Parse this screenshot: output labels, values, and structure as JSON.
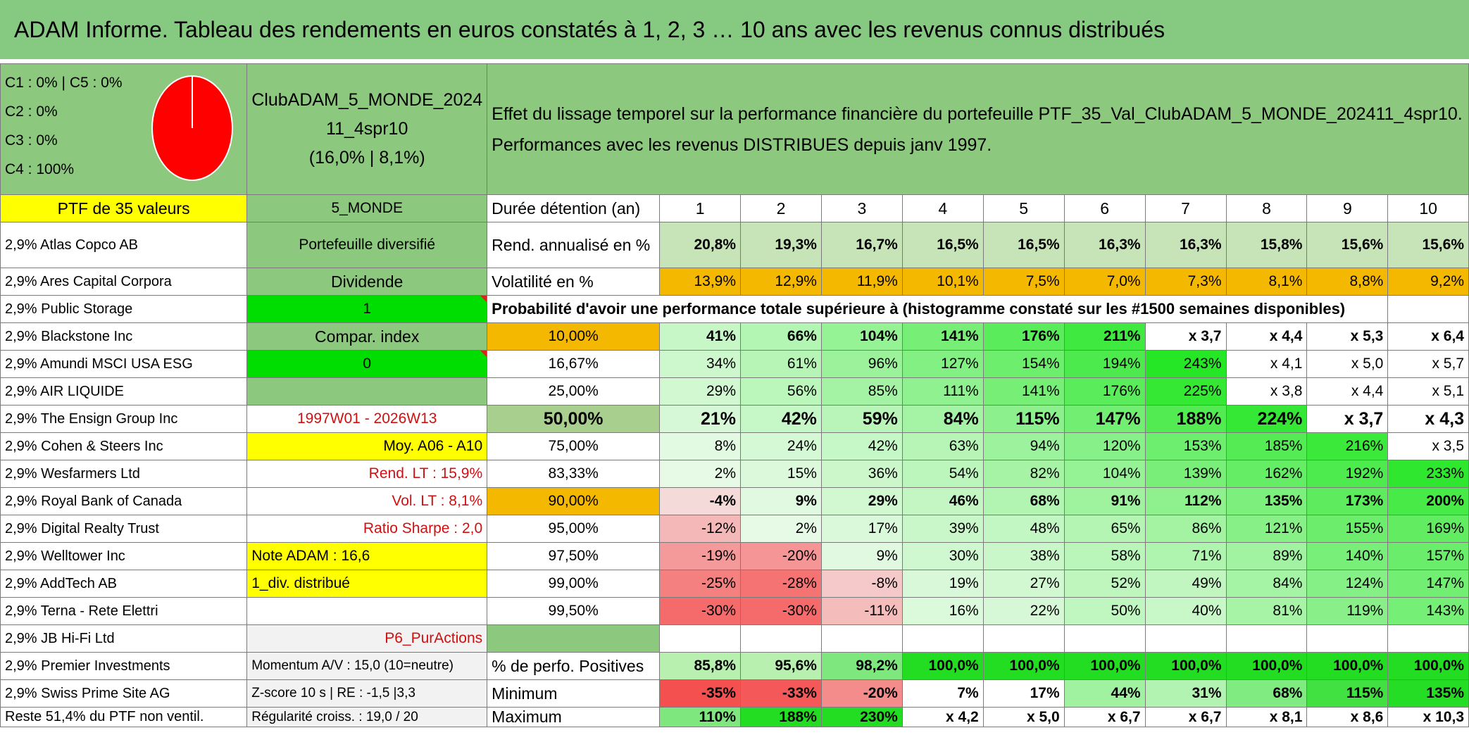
{
  "title": "ADAM Informe. Tableau des rendements en euros constatés à 1, 2, 3 … 10 ans avec les revenus connus distribués",
  "colors": {
    "banner": "#86c980",
    "label_green": "#8cc97e",
    "medium_green": "#7ec06f",
    "bright_green": "#00dd00",
    "yellow": "#ffff00",
    "orange": "#f5b800",
    "red": "#e02020",
    "pie": "#ff0000"
  },
  "legend": [
    "C1 : 0% | C5 : 0%",
    "C2 : 0%",
    "C3 : 0%",
    "C4 : 100%"
  ],
  "pie": {
    "C1": 0,
    "C2": 0,
    "C3": 0,
    "C4": 100,
    "C5": 0
  },
  "portfolio_name": [
    "ClubADAM_5_MONDE_2024",
    "11_4spr10",
    "(16,0% | 8,1%)"
  ],
  "effet_text": [
    "Effet du lissage temporel sur la performance financière du portefeuille PTF_35_Val_ClubADAM_5_MONDE_202411_4spr10.",
    "Performances avec les revenus DISTRIBUES depuis janv 1997."
  ],
  "ptf_label": "PTF de 35 valeurs",
  "zone_label": "5_MONDE",
  "duree_label": "Durée détention (an)",
  "years": [
    "1",
    "2",
    "3",
    "4",
    "5",
    "6",
    "7",
    "8",
    "9",
    "10"
  ],
  "holdings": [
    "2,9% Atlas Copco AB",
    "2,9% Ares Capital Corpora",
    "2,9% Public Storage",
    "2,9% Blackstone Inc",
    "2,9% Amundi MSCI USA ESG",
    "2,9% AIR LIQUIDE",
    "2,9% The Ensign Group Inc",
    "2,9% Cohen & Steers Inc",
    "2,9% Wesfarmers Ltd",
    "2,9% Royal Bank of Canada",
    "2,9% Digital Realty Trust",
    "2,9% Welltower Inc",
    "2,9% AddTech AB",
    "2,9% Terna - Rete Elettri",
    "2,9% JB Hi-Fi Ltd",
    "2,9% Premier Investments",
    "2,9% Swiss Prime Site AG",
    "Reste 51,4% du PTF non ventil."
  ],
  "info": {
    "diversifie": "Portefeuille diversifié",
    "dividende": "Dividende",
    "one": "1",
    "compar": "Compar. index",
    "zero": "0",
    "periode": "1997W01 - 2026W13",
    "moy": "Moy. A06 - A10",
    "rend_lt": "Rend. LT : 15,9%",
    "vol_lt": "Vol. LT : 8,1%",
    "sharpe": "Ratio Sharpe : 2,0",
    "note": "Note ADAM : 16,6",
    "div": "1_div. distribué",
    "p6": "P6_PurActions",
    "momentum": "Momentum A/V : 15,0 (10=neutre)",
    "zscore": "Z-score 10 s | RE : -1,5 |3,3",
    "regularite": "Régularité croiss. : 19,0 / 20"
  },
  "rend": {
    "label": "Rend. annualisé en %",
    "values": [
      "20,8%",
      "19,3%",
      "16,7%",
      "16,5%",
      "16,5%",
      "16,3%",
      "16,3%",
      "15,8%",
      "15,6%",
      "15,6%"
    ]
  },
  "vol": {
    "label": "Volatilité en %",
    "values": [
      "13,9%",
      "12,9%",
      "11,9%",
      "10,1%",
      "7,5%",
      "7,0%",
      "7,3%",
      "8,1%",
      "8,8%",
      "9,2%"
    ]
  },
  "prob_title": "Probabilité d'avoir une performance totale supérieure à (histogramme constaté sur les #1500 semaines disponibles)",
  "prob_rows": [
    {
      "p": "10,00%",
      "v": [
        "41%",
        "66%",
        "104%",
        "141%",
        "176%",
        "211%",
        "x 3,7",
        "x 4,4",
        "x 5,3",
        "x 6,4"
      ]
    },
    {
      "p": "16,67%",
      "v": [
        "34%",
        "61%",
        "96%",
        "127%",
        "154%",
        "194%",
        "243%",
        "x 4,1",
        "x 5,0",
        "x 5,7"
      ]
    },
    {
      "p": "25,00%",
      "v": [
        "29%",
        "56%",
        "85%",
        "111%",
        "141%",
        "176%",
        "225%",
        "x 3,8",
        "x 4,4",
        "x 5,1"
      ]
    },
    {
      "p": "50,00%",
      "v": [
        "21%",
        "42%",
        "59%",
        "84%",
        "115%",
        "147%",
        "188%",
        "224%",
        "x 3,7",
        "x 4,3"
      ]
    },
    {
      "p": "75,00%",
      "v": [
        "8%",
        "24%",
        "42%",
        "63%",
        "94%",
        "120%",
        "153%",
        "185%",
        "216%",
        "x 3,5"
      ]
    },
    {
      "p": "83,33%",
      "v": [
        "2%",
        "15%",
        "36%",
        "54%",
        "82%",
        "104%",
        "139%",
        "162%",
        "192%",
        "233%"
      ]
    },
    {
      "p": "90,00%",
      "v": [
        "-4%",
        "9%",
        "29%",
        "46%",
        "68%",
        "91%",
        "112%",
        "135%",
        "173%",
        "200%"
      ]
    },
    {
      "p": "95,00%",
      "v": [
        "-12%",
        "2%",
        "17%",
        "39%",
        "48%",
        "65%",
        "86%",
        "121%",
        "155%",
        "169%"
      ]
    },
    {
      "p": "97,50%",
      "v": [
        "-19%",
        "-20%",
        "9%",
        "30%",
        "38%",
        "58%",
        "71%",
        "89%",
        "140%",
        "157%"
      ]
    },
    {
      "p": "99,00%",
      "v": [
        "-25%",
        "-28%",
        "-8%",
        "19%",
        "27%",
        "52%",
        "49%",
        "84%",
        "124%",
        "147%"
      ]
    },
    {
      "p": "99,50%",
      "v": [
        "-30%",
        "-30%",
        "-11%",
        "16%",
        "22%",
        "50%",
        "40%",
        "81%",
        "119%",
        "143%"
      ]
    }
  ],
  "positives": {
    "label": "% de perfo. Positives",
    "values": [
      "85,8%",
      "95,6%",
      "98,2%",
      "100,0%",
      "100,0%",
      "100,0%",
      "100,0%",
      "100,0%",
      "100,0%",
      "100,0%"
    ]
  },
  "minimum": {
    "label": "Minimum",
    "values": [
      "-35%",
      "-33%",
      "-20%",
      "7%",
      "17%",
      "44%",
      "31%",
      "68%",
      "115%",
      "135%"
    ]
  },
  "maximum": {
    "label": "Maximum",
    "values": [
      "110%",
      "188%",
      "230%",
      "x 4,2",
      "x 5,0",
      "x 6,7",
      "x 6,7",
      "x 8,1",
      "x 8,6",
      "x 10,3"
    ]
  }
}
